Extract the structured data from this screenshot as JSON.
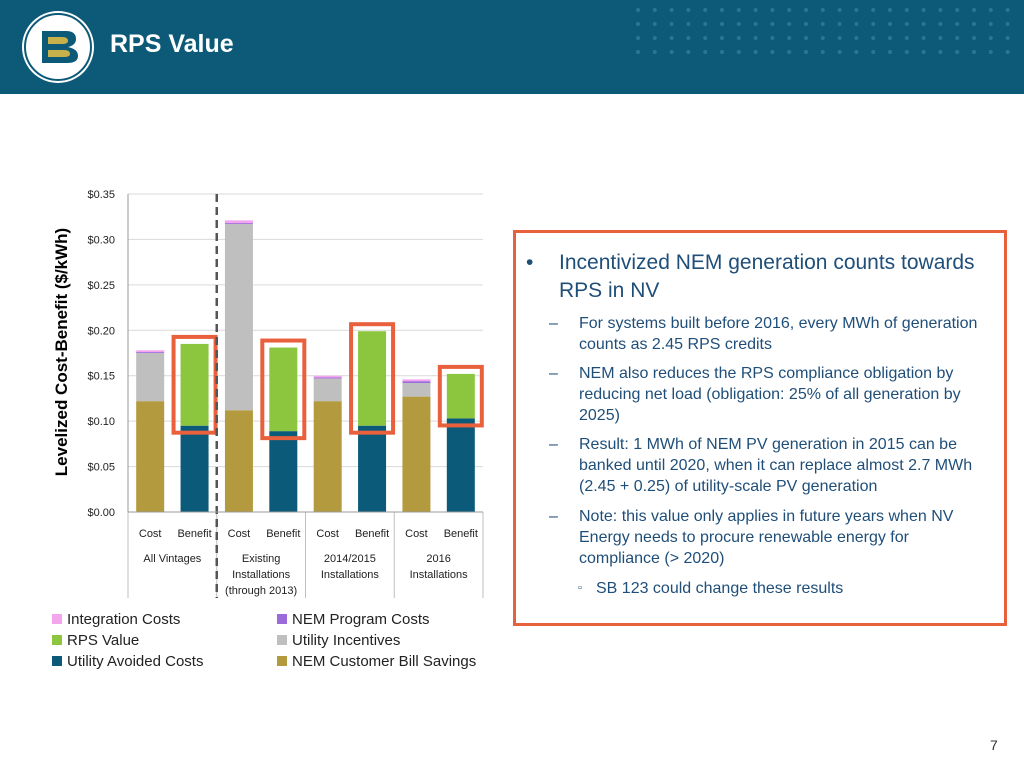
{
  "header": {
    "title": "RPS Value"
  },
  "colors": {
    "integration": "#f3a6ee",
    "nem_program": "#9b6bdc",
    "rps": "#8cc63f",
    "utility_incentives": "#bfbfbf",
    "avoided": "#0b5a7a",
    "bill_savings": "#b49a3e",
    "highlight": "#e8603c"
  },
  "chart_data": {
    "type": "bar",
    "stacked": true,
    "ylabel": "Levelized Cost-Benefit ($/kWh)",
    "ylim": [
      0,
      0.35
    ],
    "yticks": [
      "$0.00",
      "$0.05",
      "$0.10",
      "$0.15",
      "$0.20",
      "$0.25",
      "$0.30",
      "$0.35"
    ],
    "grid": true,
    "groups": [
      "All Vintages",
      "Existing Installations (through 2013)",
      "2014/2015 Installations",
      "2016 Installations"
    ],
    "group_label_lines": [
      [
        "All Vintages"
      ],
      [
        "Existing",
        "Installations",
        "(through 2013)"
      ],
      [
        "2014/2015",
        "Installations"
      ],
      [
        "2016",
        "Installations"
      ]
    ],
    "categories": [
      "Cost",
      "Benefit",
      "Cost",
      "Benefit",
      "Cost",
      "Benefit",
      "Cost",
      "Benefit"
    ],
    "series": [
      {
        "name": "NEM Customer Bill Savings",
        "color_key": "bill_savings",
        "values": [
          0.122,
          0,
          0.112,
          0,
          0.122,
          0,
          0.127,
          0
        ]
      },
      {
        "name": "Utility Avoided Costs",
        "color_key": "avoided",
        "values": [
          0,
          0.095,
          0,
          0.089,
          0,
          0.095,
          0,
          0.103
        ]
      },
      {
        "name": "Utility Incentives",
        "color_key": "utility_incentives",
        "values": [
          0.053,
          0,
          0.205,
          0,
          0.025,
          0,
          0.015,
          0
        ]
      },
      {
        "name": "RPS Value",
        "color_key": "rps",
        "values": [
          0,
          0.09,
          0,
          0.092,
          0,
          0.104,
          0,
          0.049
        ]
      },
      {
        "name": "NEM Program Costs",
        "color_key": "nem_program",
        "values": [
          0.001,
          0,
          0.001,
          0,
          0.001,
          0,
          0.002,
          0
        ]
      },
      {
        "name": "Integration Costs",
        "color_key": "integration",
        "values": [
          0.002,
          0,
          0.003,
          0,
          0.002,
          0,
          0.002,
          0
        ]
      }
    ],
    "highlighted_categories": [
      1,
      3,
      5,
      7
    ],
    "divider_after_group": 0,
    "legend": [
      {
        "label": "Integration Costs",
        "color_key": "integration"
      },
      {
        "label": "NEM Program Costs",
        "color_key": "nem_program"
      },
      {
        "label": "RPS Value",
        "color_key": "rps"
      },
      {
        "label": "Utility Incentives",
        "color_key": "utility_incentives"
      },
      {
        "label": "Utility Avoided Costs",
        "color_key": "avoided"
      },
      {
        "label": "NEM Customer Bill Savings",
        "color_key": "bill_savings"
      }
    ]
  },
  "callout": {
    "main": "Incentivized NEM generation counts towards RPS in NV",
    "subs": [
      "For systems built before 2016, every MWh of generation counts as 2.45 RPS credits",
      "NEM also reduces the RPS compliance obligation by reducing net load (obligation: 25% of all generation by 2025)",
      "Result: 1 MWh of NEM PV generation in 2015 can be banked until 2020, when it can replace almost 2.7 MWh (2.45 + 0.25) of utility-scale PV generation",
      "Note: this value only applies in future years when NV Energy needs to procure renewable energy for compliance (> 2020)"
    ],
    "subsub": "SB 123 could change these results",
    "bullet": "•",
    "dash": "–",
    "square": "▫"
  },
  "page_number": "7"
}
